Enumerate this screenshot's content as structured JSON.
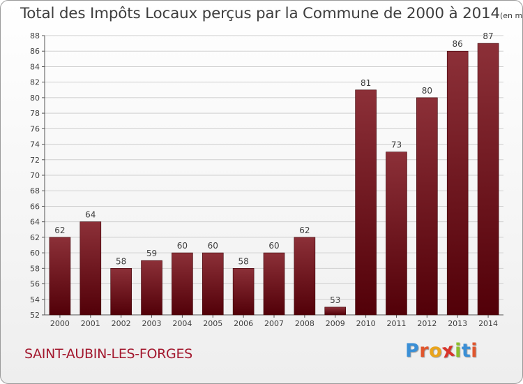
{
  "title": "Total des Impôts Locaux perçus par la Commune de 2000 à 2014",
  "subtitle": "(en milliers d'€)",
  "commune": "SAINT-AUBIN-LES-FORGES",
  "logo": {
    "text": "Proxiti",
    "letters": [
      {
        "char": "P",
        "color": "#3a8fd6"
      },
      {
        "char": "r",
        "color": "#e0562d"
      },
      {
        "char": "o",
        "color": "#e9a41c"
      },
      {
        "char": "x",
        "color": "#d9342b"
      },
      {
        "char": "i",
        "color": "#8cbf2c"
      },
      {
        "char": "t",
        "color": "#3a8fd6"
      },
      {
        "char": "i",
        "color": "#e0562d"
      }
    ]
  },
  "colors": {
    "bar_top": "#8c3038",
    "bar_bottom": "#520008",
    "grid": "#cfcfcf",
    "text": "#3e3e3e"
  },
  "chart_data": {
    "type": "bar",
    "categories": [
      "2000",
      "2001",
      "2002",
      "2003",
      "2004",
      "2005",
      "2006",
      "2007",
      "2008",
      "2009",
      "2010",
      "2011",
      "2012",
      "2013",
      "2014"
    ],
    "values": [
      62,
      64,
      58,
      59,
      60,
      60,
      58,
      60,
      62,
      53,
      81,
      73,
      80,
      86,
      87
    ],
    "data_labels": [
      "62",
      "64",
      "58",
      "59",
      "60",
      "60",
      "58",
      "60",
      "62",
      "53",
      "81",
      "73",
      "80",
      "86",
      "87"
    ],
    "ylim": [
      52,
      88
    ],
    "yticks": [
      52,
      54,
      56,
      58,
      60,
      62,
      64,
      66,
      68,
      70,
      72,
      74,
      76,
      78,
      80,
      82,
      84,
      86,
      88
    ],
    "grid": true,
    "xlabel": "",
    "ylabel": ""
  }
}
